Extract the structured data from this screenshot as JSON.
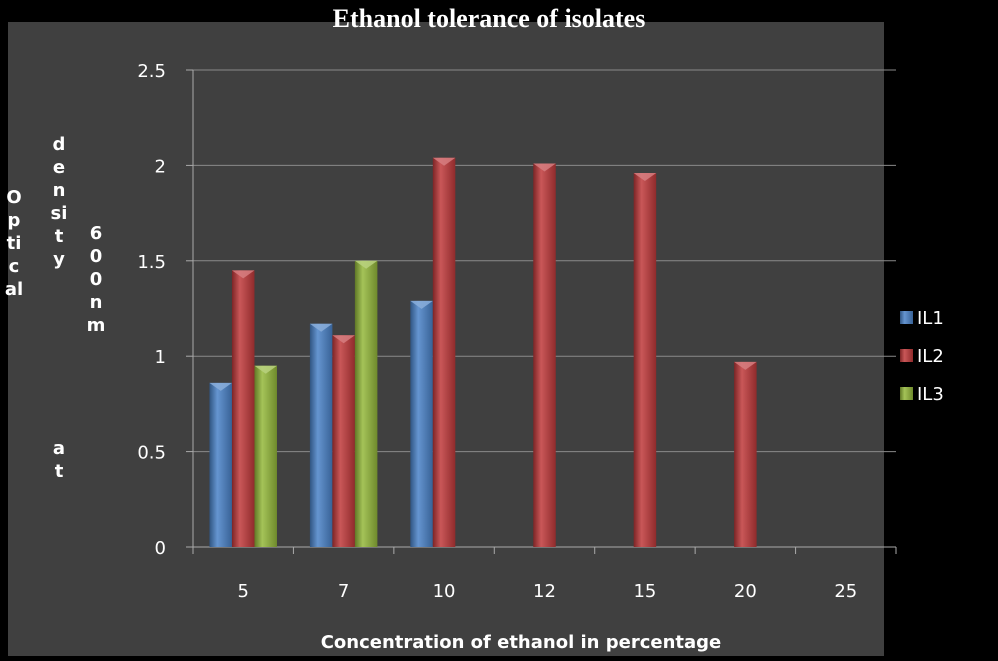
{
  "chart_data": {
    "type": "bar",
    "title": "Ethanol tolerance of isolates",
    "xlabel": "Concentration of ethanol in percentage",
    "ylabel_words": [
      "Optical",
      "density",
      "at",
      "600nm"
    ],
    "categories": [
      "5",
      "7",
      "10",
      "12",
      "15",
      "20",
      "25"
    ],
    "series": [
      {
        "name": "IL1",
        "color": "#4a82c8",
        "values": [
          0.86,
          1.17,
          1.29,
          null,
          null,
          null,
          null
        ]
      },
      {
        "name": "IL2",
        "color": "#c0393b",
        "values": [
          1.45,
          1.11,
          2.04,
          2.01,
          1.96,
          0.97,
          null
        ]
      },
      {
        "name": "IL3",
        "color": "#94b83a",
        "values": [
          0.95,
          1.5,
          null,
          null,
          null,
          null,
          null
        ]
      }
    ],
    "ylim": [
      0,
      2.5
    ],
    "yticks": [
      "0",
      "0.5",
      "1",
      "1.5",
      "2",
      "2.5"
    ],
    "grid": true,
    "legend_position": "right",
    "plot_background": "#404040",
    "page_background": "#000000"
  }
}
